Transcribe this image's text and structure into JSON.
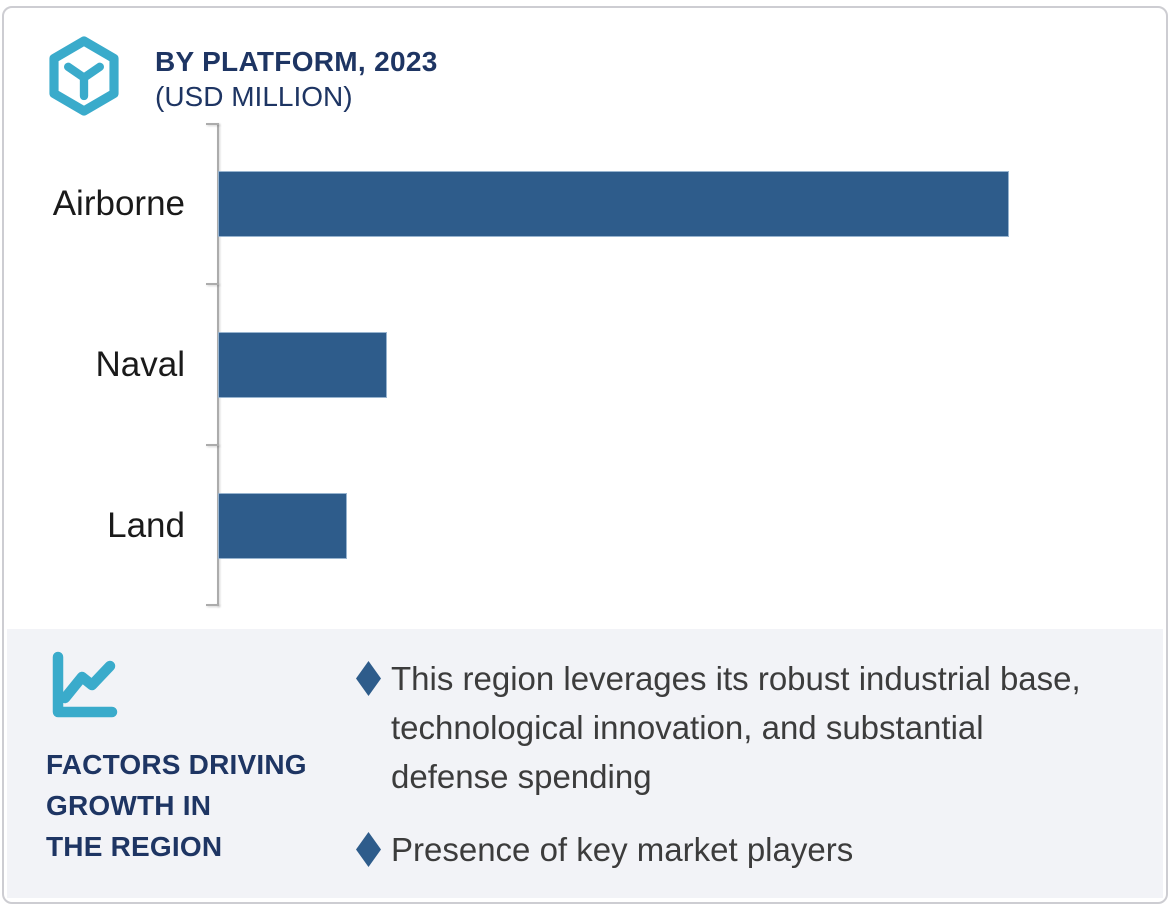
{
  "header": {
    "icon_name": "hexagon-cube-icon",
    "title": "BY PLATFORM, 2023",
    "subtitle": "(USD MILLION)"
  },
  "chart_data": {
    "type": "bar",
    "orientation": "horizontal",
    "title": "BY PLATFORM, 2023",
    "unit": "USD MILLION",
    "categories": [
      "Airborne",
      "Naval",
      "Land"
    ],
    "relative_values": [
      100,
      21.4,
      16.3
    ],
    "axis_values_shown": false,
    "value_labels_shown": false,
    "grid": false,
    "legend": false,
    "bar_color": "#2E5C8B",
    "axis_color": "#ACACAC"
  },
  "footer": {
    "icon_name": "line-chart-icon",
    "heading_lines": [
      "FACTORS DRIVING",
      "GROWTH IN",
      "THE REGION"
    ],
    "bullet_marker_shape": "diamond",
    "bullets": [
      {
        "lines": [
          "This region leverages its robust industrial base,",
          "technological innovation, and substantial",
          "defense spending"
        ]
      },
      {
        "lines": [
          "Presence of key market players"
        ]
      }
    ]
  },
  "colors": {
    "accent_cyan": "#3AABCB",
    "navy": "#1E3563",
    "bar_blue": "#2E5C8B",
    "footer_bg": "#F2F3F7",
    "body_text": "#3C3C3C",
    "label_text": "#1A1A1A",
    "card_border": "#CDCDD2",
    "axis_gray": "#ACACAC"
  }
}
